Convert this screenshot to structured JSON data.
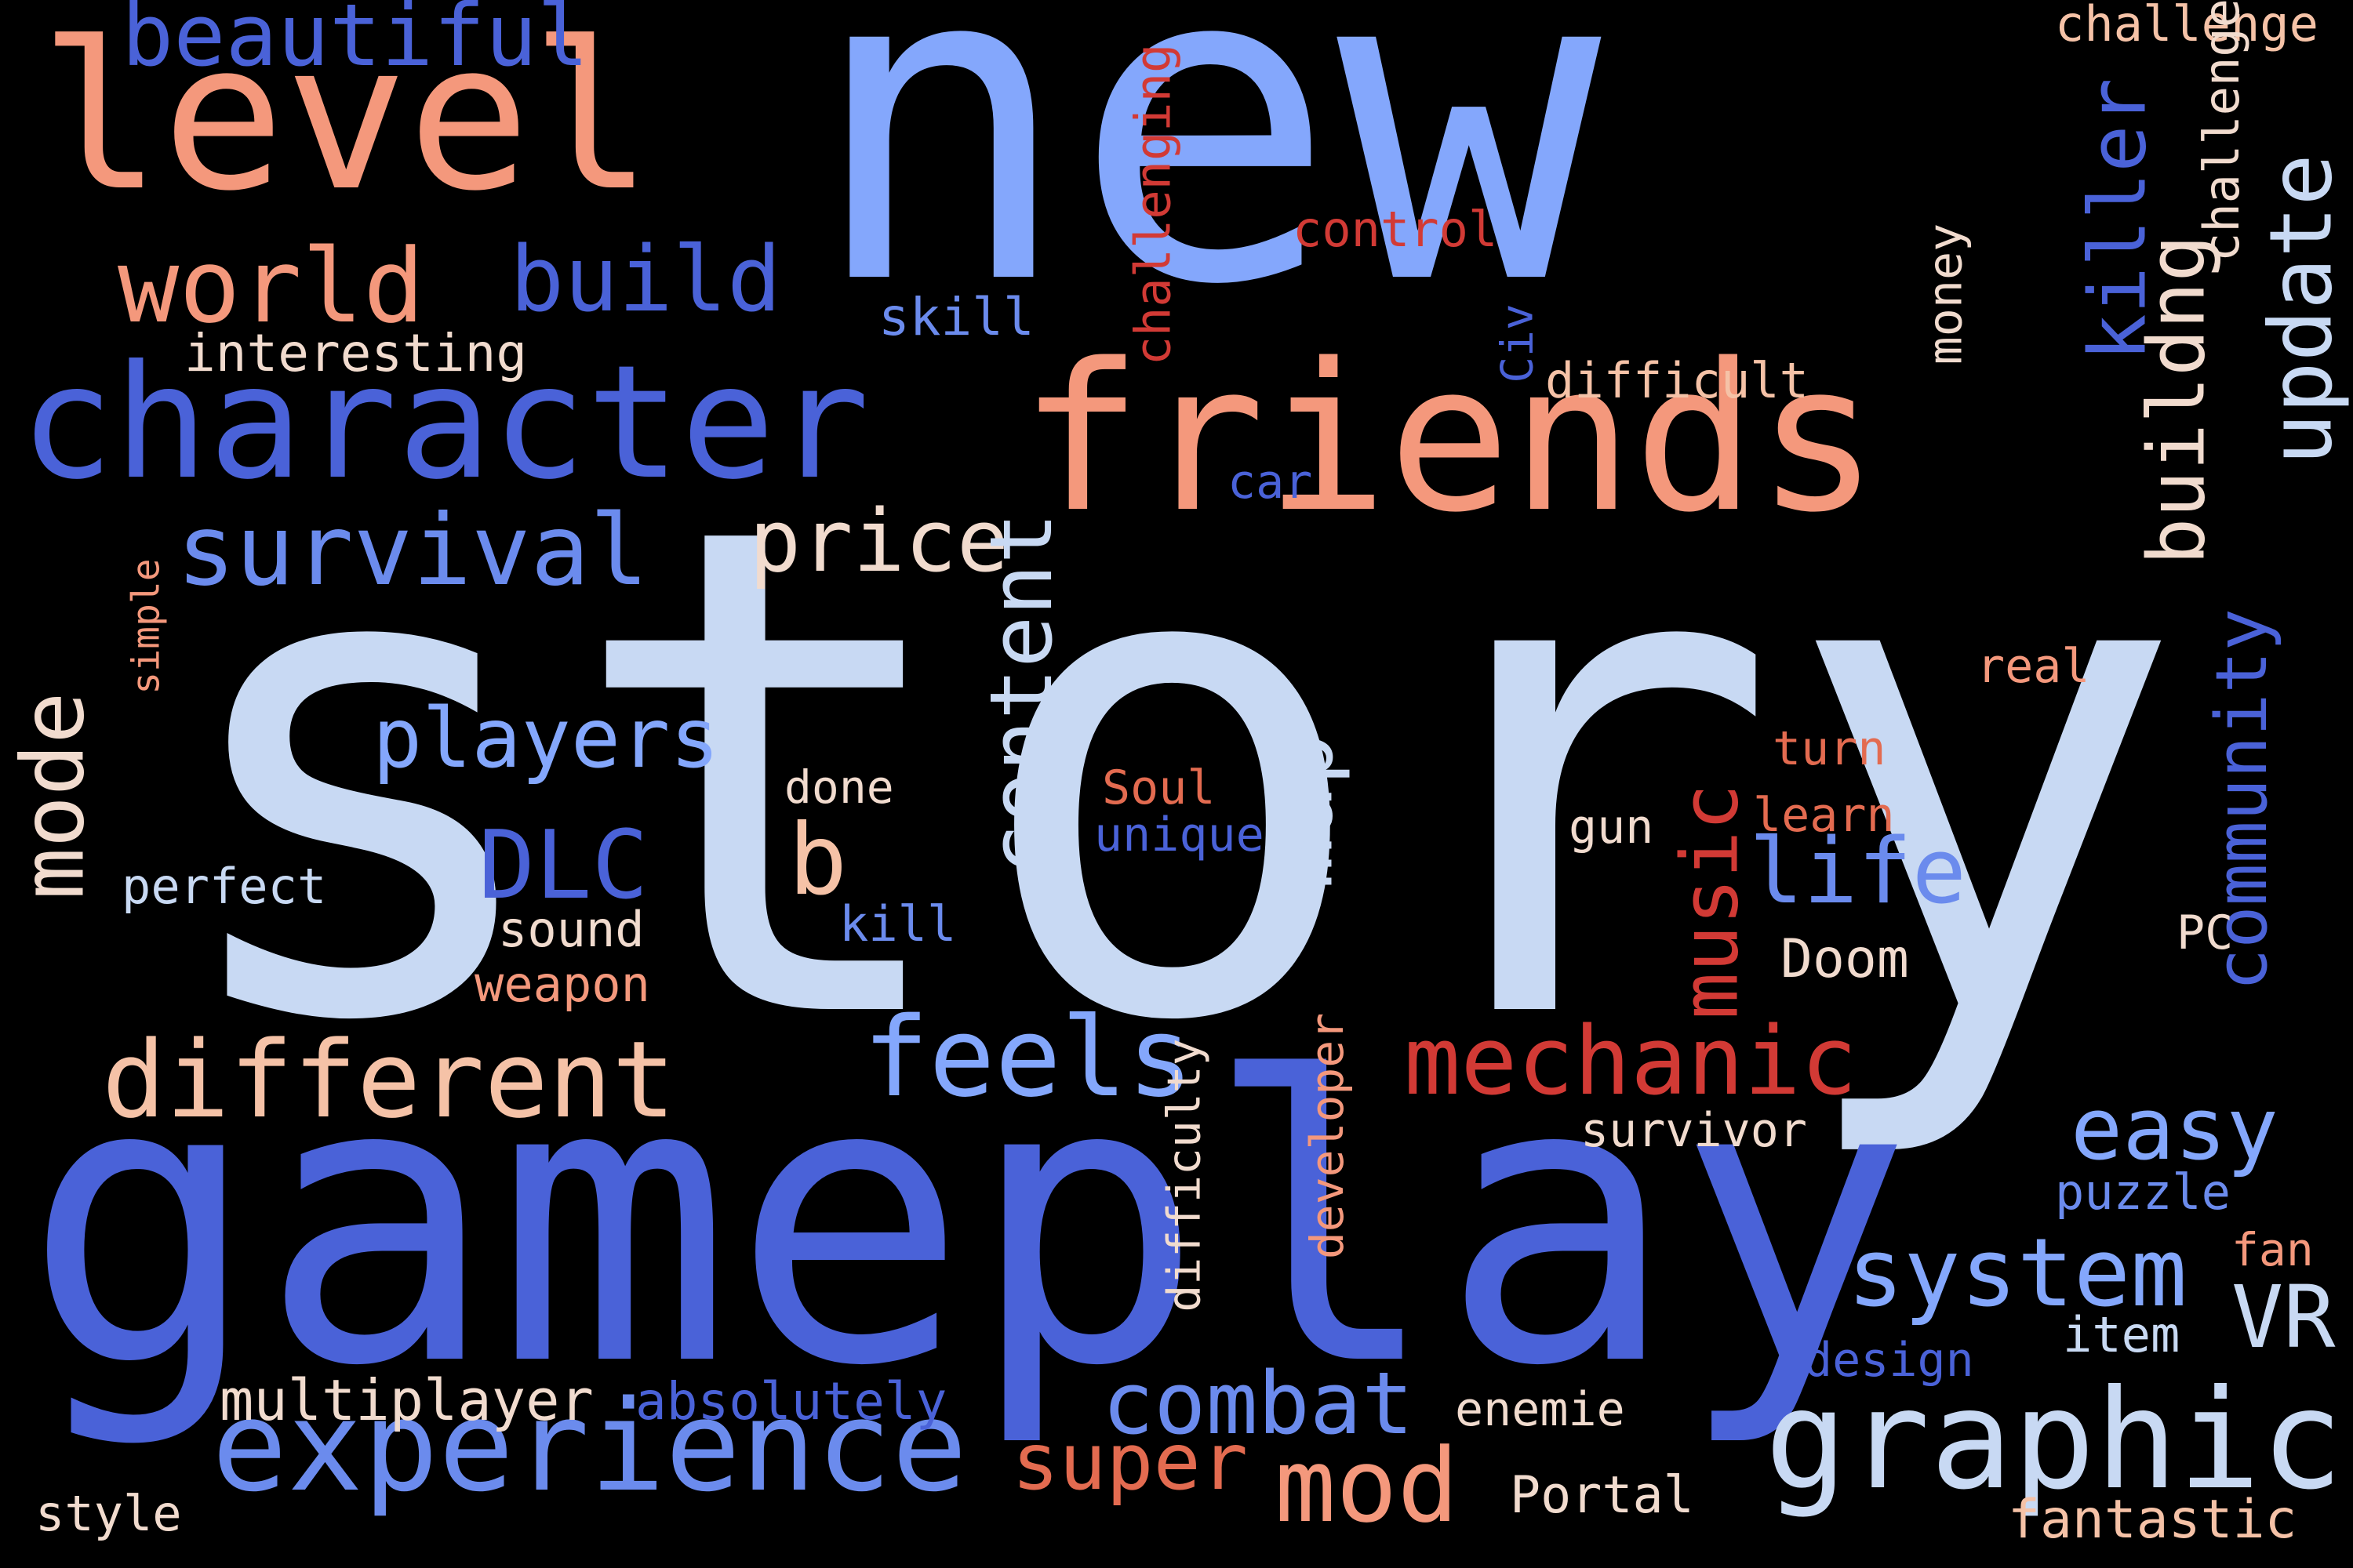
{
  "colors": {
    "background": "#000000",
    "periwinkle": "#84A7FC",
    "royal_blue": "#4A62D8",
    "mid_blue": "#6B8BED",
    "pale_blue": "#C8D9F3",
    "salmon": "#F4987C",
    "peach": "#F5C2A7",
    "cream": "#F1DBCE",
    "red": "#D23A35",
    "brick": "#E36B50"
  },
  "words": [
    "new",
    "story",
    "gameplay",
    "friends",
    "level",
    "character",
    "experience",
    "graphic",
    "world",
    "build",
    "beautiful",
    "survival",
    "different",
    "combat",
    "mechanic",
    "system",
    "price",
    "players",
    "feels",
    "life",
    "mode",
    "content",
    "map",
    "music",
    "easy",
    "update",
    "buildng",
    "killer",
    "community",
    "DLC",
    "b",
    "mod",
    "super",
    "VR",
    "multiplayer",
    "absolutely",
    "interesting",
    "skill",
    "challenging",
    "control",
    "challenge",
    "money",
    "difficult",
    "Civ",
    "car",
    "simple",
    "real",
    "turn",
    "learn",
    "done",
    "Soul",
    "unique",
    "gun",
    "perfect",
    "sound",
    "kill",
    "weapon",
    "Doom",
    "PC",
    "developer",
    "difficulty",
    "survivor",
    "puzzle",
    "fan",
    "item",
    "design",
    "enemie",
    "Portal",
    "fantastic",
    "style"
  ]
}
